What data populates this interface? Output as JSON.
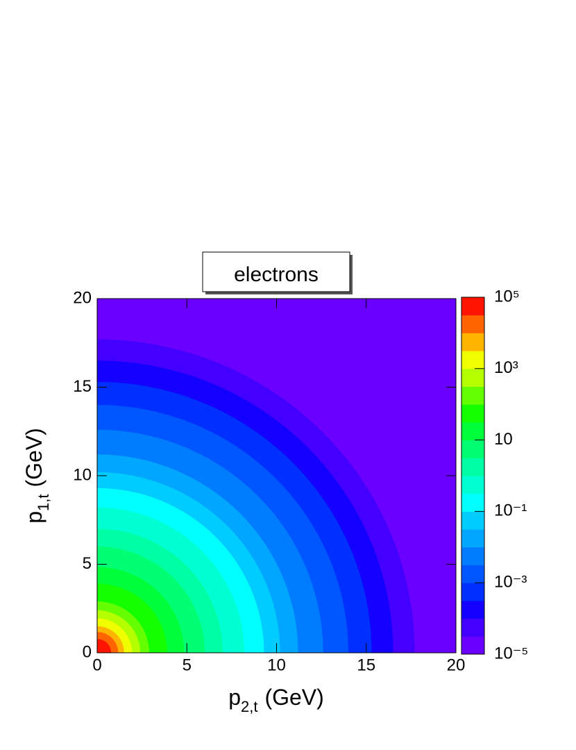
{
  "chart_data": {
    "type": "contour",
    "title": "electrons",
    "x_label": {
      "base": "p",
      "sub": "2,t",
      "unit": "(GeV)"
    },
    "y_label": {
      "base": "p",
      "sub": "1,t",
      "unit": "(GeV)"
    },
    "xlim": [
      0,
      20
    ],
    "xticks": [
      0,
      5,
      10,
      15,
      20
    ],
    "ylim": [
      0,
      20
    ],
    "yticks": [
      0,
      5,
      10,
      15,
      20
    ],
    "zlim": [
      1e-05,
      100000
    ],
    "zscale": "log",
    "zticks": [
      {
        "value": 1e-05,
        "label": "10⁻⁵"
      },
      {
        "value": 0.001,
        "label": "10⁻³"
      },
      {
        "value": 0.1,
        "label": "10⁻¹"
      },
      {
        "value": 10,
        "label": "10"
      },
      {
        "value": 1000,
        "label": "10³"
      },
      {
        "value": 100000,
        "label": "10⁵"
      }
    ],
    "bands": [
      {
        "color": "#6a00ff",
        "radius": 28.3
      },
      {
        "color": "#4400ff",
        "radius": 17.7
      },
      {
        "color": "#1400ff",
        "radius": 16.5
      },
      {
        "color": "#0030ff",
        "radius": 15.3
      },
      {
        "color": "#0056ff",
        "radius": 14.0
      },
      {
        "color": "#007cff",
        "radius": 12.6
      },
      {
        "color": "#00a6ff",
        "radius": 11.2
      },
      {
        "color": "#00ccff",
        "radius": 10.2
      },
      {
        "color": "#00ffff",
        "radius": 9.3
      },
      {
        "color": "#00ffd2",
        "radius": 8.2
      },
      {
        "color": "#00ffa4",
        "radius": 7.0
      },
      {
        "color": "#00ff72",
        "radius": 6.0
      },
      {
        "color": "#00ff3a",
        "radius": 4.85
      },
      {
        "color": "#14ff00",
        "radius": 3.9
      },
      {
        "color": "#64ff00",
        "radius": 2.9
      },
      {
        "color": "#b4ff00",
        "radius": 2.4
      },
      {
        "color": "#f0ff00",
        "radius": 1.94
      },
      {
        "color": "#ffb400",
        "radius": 1.5
      },
      {
        "color": "#ff6400",
        "radius": 1.17
      },
      {
        "color": "#ff1400",
        "radius": 0.78
      }
    ]
  }
}
